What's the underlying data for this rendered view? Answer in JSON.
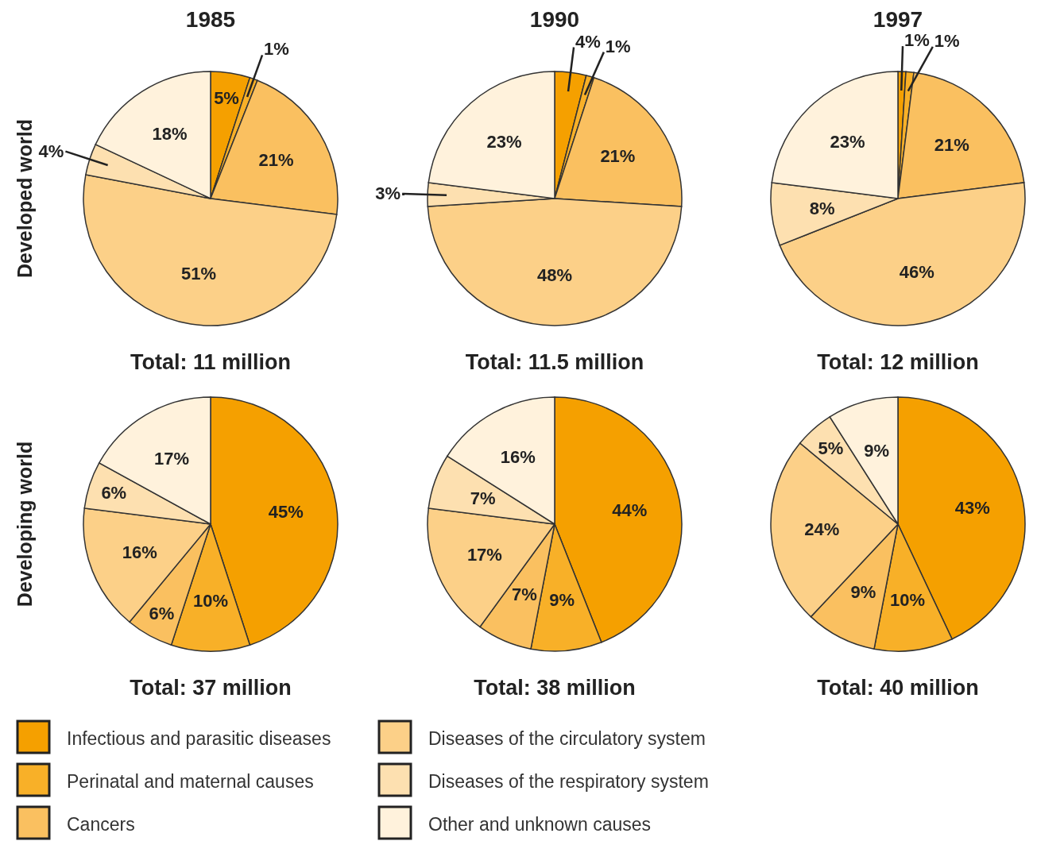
{
  "chart_data": [
    {
      "type": "pie",
      "title": "1985",
      "ylabel": "Developed world",
      "annotations": [
        "Total: 11 million"
      ],
      "categories": [
        null,
        null,
        null,
        null,
        null,
        null
      ],
      "values": [
        5,
        1,
        21,
        51,
        4,
        18
      ],
      "value_labels": [
        "5%",
        "1%",
        "21%",
        "51%",
        "4%",
        "18%"
      ],
      "colors": [
        "#f5a000",
        "#f8b028",
        "#fac060",
        "#fcd088",
        "#fde0b0",
        "#fff2dc"
      ]
    },
    {
      "type": "pie",
      "title": "1990",
      "annotations": [
        "Total: 11.5 million"
      ],
      "categories": [
        null,
        null,
        null,
        null,
        null,
        null
      ],
      "values": [
        4,
        1,
        21,
        48,
        3,
        23
      ],
      "value_labels": [
        "4%",
        "1%",
        "21%",
        "48%",
        "3%",
        "23%"
      ],
      "colors": [
        "#f5a000",
        "#f8b028",
        "#fac060",
        "#fcd088",
        "#fde0b0",
        "#fff2dc"
      ]
    },
    {
      "type": "pie",
      "title": "1997",
      "annotations": [
        "Total: 12 million"
      ],
      "categories": [
        null,
        null,
        null,
        null,
        null,
        null
      ],
      "values": [
        1,
        1,
        21,
        46,
        8,
        23
      ],
      "value_labels": [
        "1%",
        "1%",
        "21%",
        "46%",
        "8%",
        "23%"
      ],
      "colors": [
        "#f5a000",
        "#f8b028",
        "#fac060",
        "#fcd088",
        "#fde0b0",
        "#fff2dc"
      ]
    },
    {
      "type": "pie",
      "ylabel": "Developing world",
      "annotations": [
        "Total: 37 million"
      ],
      "legend": "bottom",
      "categories": [
        "Infectious and parasitic diseases",
        "Perinatal and maternal causes",
        "Cancers",
        "Diseases of the circulatory system",
        "Diseases of the respiratory system",
        "Other and unknown causes"
      ],
      "values": [
        45,
        10,
        6,
        16,
        6,
        17
      ],
      "value_labels": [
        "45%",
        "10%",
        "6%",
        "16%",
        "6%",
        "17%"
      ],
      "colors": [
        "#f5a000",
        "#f8b028",
        "#fac060",
        "#fcd088",
        "#fde0b0",
        "#fff2dc"
      ]
    },
    {
      "type": "pie",
      "annotations": [
        "Total: 38 million"
      ],
      "categories": [
        null,
        null,
        null,
        null,
        null,
        null
      ],
      "values": [
        44,
        9,
        7,
        17,
        7,
        16
      ],
      "value_labels": [
        "44%",
        "9%",
        "7%",
        "17%",
        "7%",
        "16%"
      ],
      "colors": [
        "#f5a000",
        "#f8b028",
        "#fac060",
        "#fcd088",
        "#fde0b0",
        "#fff2dc"
      ]
    },
    {
      "type": "pie",
      "annotations": [
        "Total: 40 million"
      ],
      "categories": [
        null,
        null,
        null,
        null,
        null,
        null
      ],
      "values": [
        43,
        10,
        9,
        24,
        5,
        9
      ],
      "value_labels": [
        "43%",
        "10%",
        "9%",
        "24%",
        "5%",
        "9%"
      ],
      "colors": [
        "#f5a000",
        "#f8b028",
        "#fac060",
        "#fcd088",
        "#fde0b0",
        "#fff2dc"
      ]
    }
  ]
}
